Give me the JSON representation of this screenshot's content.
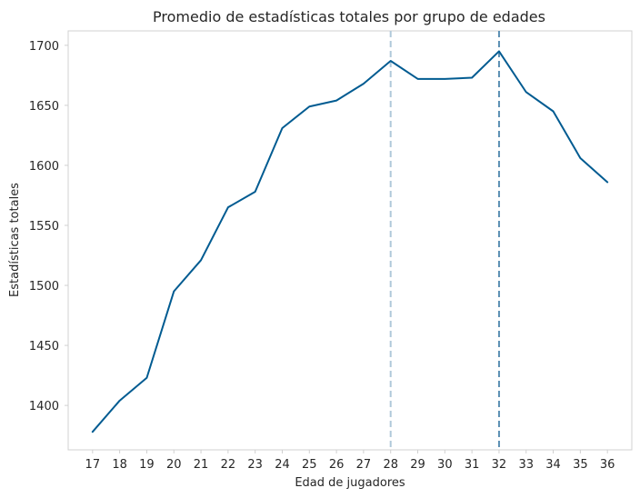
{
  "chart_data": {
    "type": "line",
    "title": "Promedio de estadísticas totales por grupo de edades",
    "xlabel": "Edad de jugadores",
    "ylabel": "Estadísticas totales",
    "x": [
      17,
      18,
      19,
      20,
      21,
      22,
      23,
      24,
      25,
      26,
      27,
      28,
      29,
      30,
      31,
      32,
      33,
      34,
      35,
      36
    ],
    "series": [
      {
        "values": [
          1378,
          1404,
          1423,
          1495,
          1521,
          1565,
          1578,
          1631,
          1649,
          1654,
          1668,
          1687,
          1672,
          1672,
          1673,
          1695,
          1661,
          1645,
          1606,
          1586
        ],
        "color": "#005b91"
      }
    ],
    "xticks": [
      "17",
      "18",
      "19",
      "20",
      "21",
      "22",
      "23",
      "24",
      "25",
      "26",
      "27",
      "28",
      "29",
      "30",
      "31",
      "32",
      "33",
      "34",
      "35",
      "36"
    ],
    "yticks": [
      "1400",
      "1450",
      "1500",
      "1550",
      "1600",
      "1650",
      "1700"
    ],
    "ylim": [
      1363,
      1712
    ],
    "xlim": [
      16.1,
      36.9
    ],
    "vlines": [
      {
        "x": 28,
        "color": "#b0c9da",
        "style": "dashed"
      },
      {
        "x": 32,
        "color": "#5a8fb3",
        "style": "dashed"
      }
    ],
    "grid": false,
    "legend": "none"
  }
}
